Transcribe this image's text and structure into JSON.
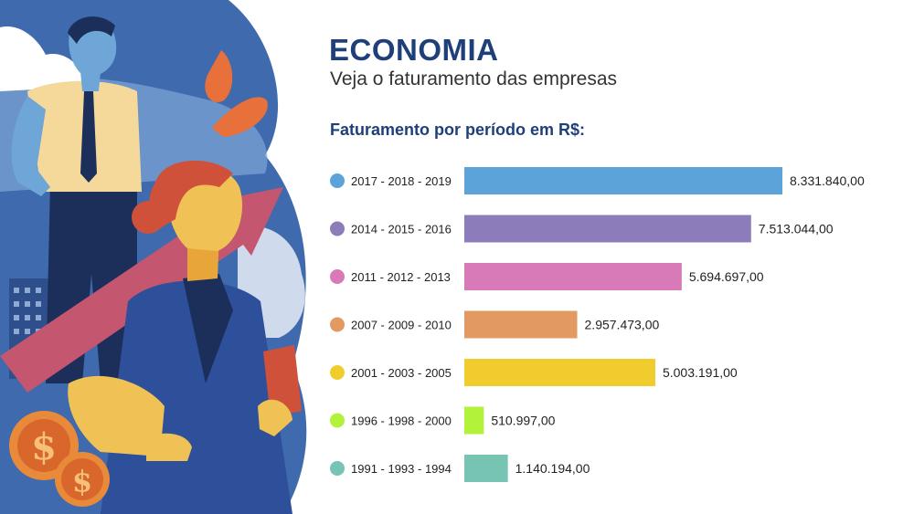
{
  "header": {
    "title": "ECONOMIA",
    "subtitle": "Veja o faturamento das empresas"
  },
  "chart_heading": "Faturamento por período em R$:",
  "chart_data": {
    "type": "bar",
    "orientation": "horizontal",
    "title": "Faturamento por período em R$:",
    "xlabel": "",
    "ylabel": "",
    "xlim": [
      0,
      8331840
    ],
    "grid": false,
    "legend": "none",
    "categories": [
      "2017 - 2018 - 2019",
      "2014 - 2015 - 2016",
      "2011 - 2012 - 2013",
      "2007 - 2009 - 2010",
      "2001 - 2003 - 2005",
      "1996 - 1998 - 2000",
      "1991 - 1993 - 1994"
    ],
    "values": [
      8331840.0,
      7513044.0,
      5694697.0,
      2957473.0,
      5003191.0,
      510997.0,
      1140194.0
    ],
    "value_labels": [
      "8.331.840,00",
      "7.513.044,00",
      "5.694.697,00",
      "2.957.473,00",
      "5.003.191,00",
      "510.997,00",
      "1.140.194,00"
    ],
    "colors": [
      "#5ba3d9",
      "#8d7cba",
      "#d97ab8",
      "#e29a62",
      "#f1cc2d",
      "#b3f23a",
      "#77c4b3"
    ]
  }
}
